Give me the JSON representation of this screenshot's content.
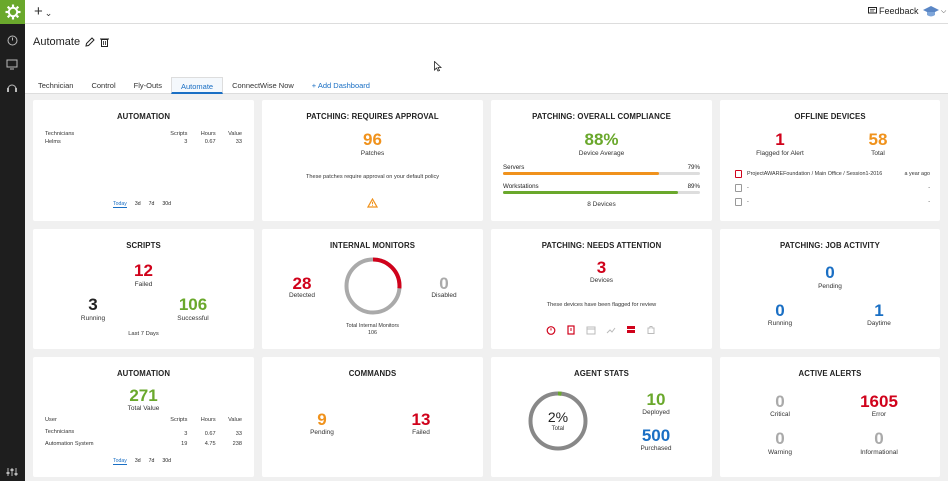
{
  "topbar": {
    "plus": "+",
    "feedback": "Feedback"
  },
  "header": {
    "title": "Automate"
  },
  "tabs": [
    {
      "label": "Technician"
    },
    {
      "label": "Control"
    },
    {
      "label": "Fly-Outs"
    },
    {
      "label": "Automate",
      "active": true
    },
    {
      "label": "ConnectWise Now"
    },
    {
      "label": "+ Add Dashboard"
    }
  ],
  "automation1": {
    "title": "AUTOMATION",
    "cols": [
      "Technicians",
      "Scripts",
      "Hours",
      "Value"
    ],
    "rows": [
      {
        "name": "Helms",
        "scripts": "3",
        "hours": "0.67",
        "value": "33"
      }
    ],
    "timeline": [
      "Today",
      "3d",
      "7d",
      "30d"
    ]
  },
  "approval": {
    "title": "PATCHING: REQUIRES APPROVAL",
    "count": "96",
    "label": "Patches",
    "note": "These patches require approval on your default policy"
  },
  "compliance": {
    "title": "PATCHING: OVERALL COMPLIANCE",
    "pct": "88%",
    "label": "Device Average",
    "servers": {
      "label": "Servers",
      "pct": "79%",
      "value": 79
    },
    "workstations": {
      "label": "Workstations",
      "pct": "89%",
      "value": 89
    },
    "devices": "8 Devices"
  },
  "offline": {
    "title": "OFFLINE DEVICES",
    "flagged": "1",
    "flagged_label": "Flagged for Alert",
    "total": "58",
    "total_label": "Total",
    "rows": [
      {
        "text": "ProjectAWAREFoundation / Main Office / Session1-2016",
        "time": "a year ago"
      },
      {
        "text": "-",
        "time": "-"
      },
      {
        "text": "-",
        "time": "-"
      }
    ]
  },
  "scripts": {
    "title": "SCRIPTS",
    "failed": "12",
    "failed_label": "Failed",
    "running": "3",
    "running_label": "Running",
    "successful": "106",
    "successful_label": "Successful",
    "footer": "Last 7 Days"
  },
  "monitors": {
    "title": "INTERNAL MONITORS",
    "detected": "28",
    "detected_label": "Detected",
    "disabled": "0",
    "disabled_label": "Disabled",
    "total_label": "Total Internal Monitors",
    "total": "106",
    "detected_fraction": 0.264
  },
  "attention": {
    "title": "PATCHING: NEEDS ATTENTION",
    "count": "3",
    "label": "Devices",
    "note": "These devices have been flagged for review"
  },
  "job": {
    "title": "PATCHING: JOB ACTIVITY",
    "pending": "0",
    "pending_label": "Pending",
    "running": "0",
    "running_label": "Running",
    "daytime": "1",
    "daytime_label": "Daytime"
  },
  "automation2": {
    "title": "AUTOMATION",
    "total": "271",
    "total_label": "Total Value",
    "cols": [
      "User",
      "Scripts",
      "Hours",
      "Value"
    ],
    "rows": [
      {
        "name": "Technicians",
        "scripts": "3",
        "hours": "0.67",
        "value": "33"
      },
      {
        "name": "Automation System",
        "scripts": "19",
        "hours": "4.75",
        "value": "238"
      }
    ],
    "timeline": [
      "Today",
      "3d",
      "7d",
      "30d"
    ]
  },
  "commands": {
    "title": "COMMANDS",
    "pending": "9",
    "pending_label": "Pending",
    "failed": "13",
    "failed_label": "Failed"
  },
  "agent": {
    "title": "AGENT STATS",
    "pct": "2%",
    "pct_label": "Total",
    "pct_value": 2,
    "deployed": "10",
    "deployed_label": "Deployed",
    "purchased": "500",
    "purchased_label": "Purchased"
  },
  "alerts": {
    "title": "ACTIVE ALERTS",
    "critical": "0",
    "critical_label": "Critical",
    "error": "1605",
    "error_label": "Error",
    "warning": "0",
    "warning_label": "Warning",
    "informational": "0",
    "informational_label": "Informational"
  },
  "colors": {
    "green": "#6aa82c",
    "red": "#d0021b",
    "orange": "#f0921c",
    "blue": "#1a6fc4"
  }
}
